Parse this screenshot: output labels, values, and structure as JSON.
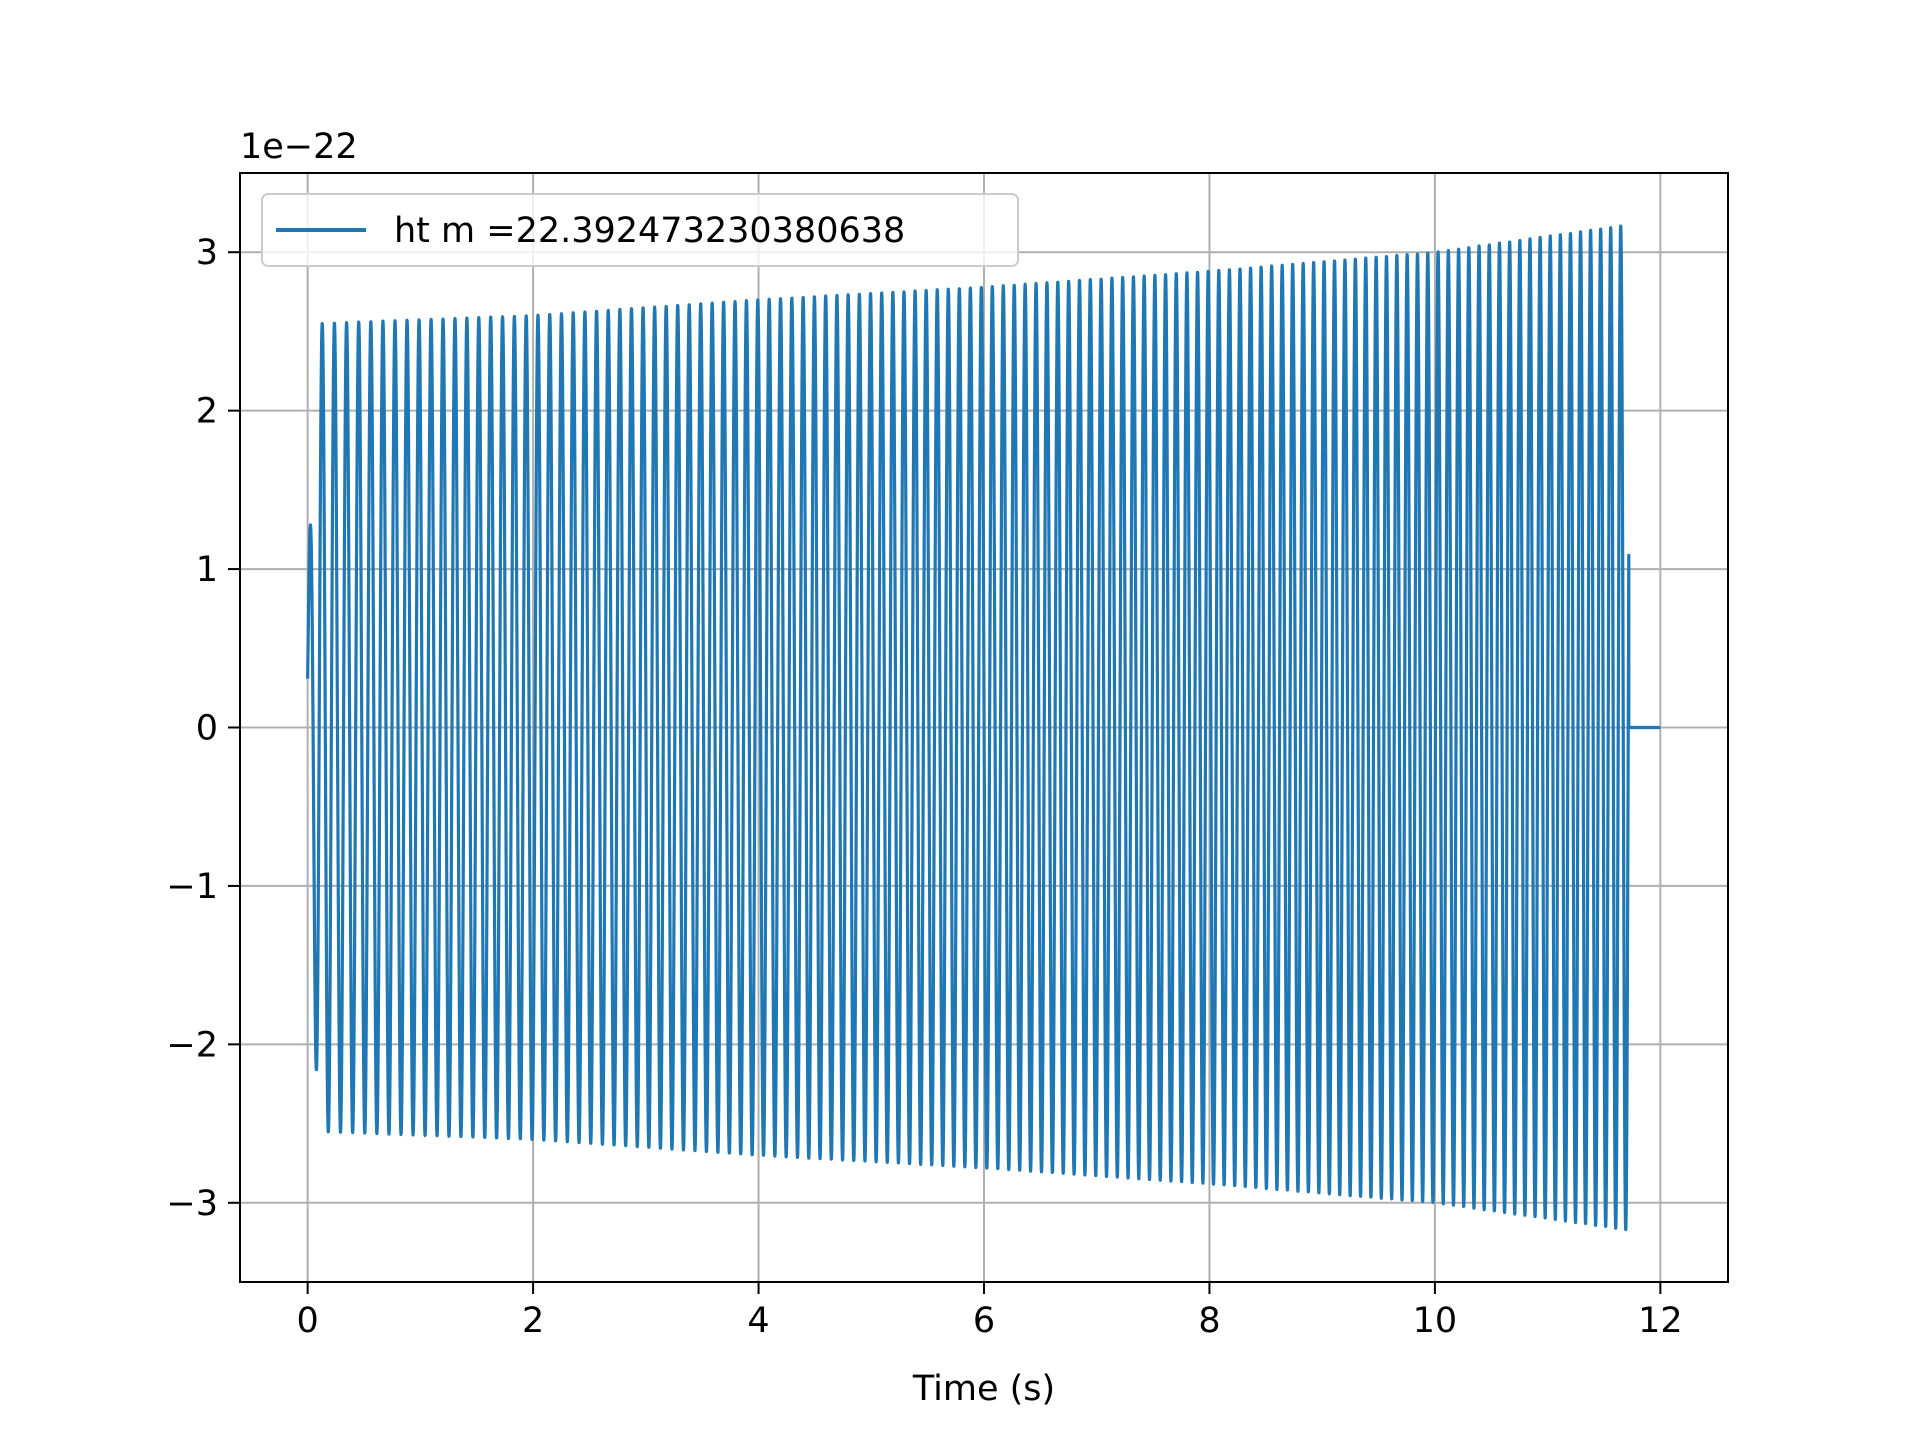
{
  "chart_data": {
    "type": "line",
    "title": "",
    "xlabel": "Time (s)",
    "ylabel": "",
    "y_offset_label": "1e−22",
    "xlim": [
      -0.6,
      12.6
    ],
    "ylim": [
      -3.5,
      3.5
    ],
    "x_ticks": [
      0,
      2,
      4,
      6,
      8,
      10,
      12
    ],
    "x_tick_labels": [
      "0",
      "2",
      "4",
      "6",
      "8",
      "10",
      "12"
    ],
    "y_ticks": [
      -3,
      -2,
      -1,
      0,
      1,
      2,
      3
    ],
    "y_tick_labels": [
      "−3",
      "−2",
      "−1",
      "0",
      "1",
      "2",
      "3"
    ],
    "grid": true,
    "legend_position": "top-left",
    "series": [
      {
        "name": "ht m =22.392473230380638",
        "color": "#1f77b4",
        "signal_start_s": 0.0,
        "signal_end_s": 11.72,
        "zero_tail_end_s": 12.0,
        "cycles": 120,
        "envelope_x": [
          0.0,
          0.1,
          2.0,
          4.0,
          6.0,
          8.0,
          10.0,
          11.7
        ],
        "envelope_y": [
          0.9,
          2.55,
          2.6,
          2.7,
          2.78,
          2.88,
          3.0,
          3.17
        ]
      }
    ]
  }
}
